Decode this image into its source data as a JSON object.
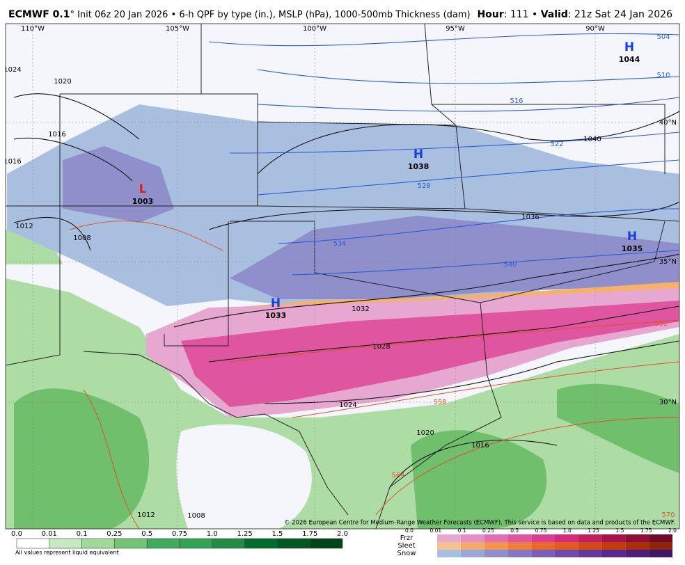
{
  "header": {
    "model": "ECMWF 0.1",
    "subtitle": "° Init 06z 20 Jan 2026 • 6-h QPF by type (in.), MSLP (hPa), 1000-500mb Thickness (dam)",
    "hour_label": "Hour",
    "hour_value": ": 111 • ",
    "valid_label": "Valid",
    "valid_value": ": 21z Sat 24 Jan 2026"
  },
  "map": {
    "longitudes": [
      "110°W",
      "105°W",
      "100°W",
      "95°W",
      "90°W"
    ],
    "latitudes": [
      "40°N",
      "35°N",
      "30°N"
    ],
    "pressure_centers": [
      {
        "letter": "H",
        "value": "1044"
      },
      {
        "letter": "H",
        "value": "1038"
      },
      {
        "letter": "H",
        "value": "1035"
      },
      {
        "letter": "H",
        "value": "1033"
      },
      {
        "letter": "L",
        "value": "1003"
      }
    ],
    "isobar_labels": [
      "1024",
      "1020",
      "1016",
      "1016",
      "1012",
      "1008",
      "1040",
      "1036",
      "1032",
      "1028",
      "1024",
      "1020",
      "1016",
      "1012",
      "1008"
    ],
    "thickness_labels": [
      "504",
      "510",
      "516",
      "522",
      "528",
      "534",
      "540",
      "552",
      "558",
      "564",
      "570"
    ],
    "copyright": "© 2026 European Centre for Medium-Range Weather Forecasts (ECMWF). This service is based on data and products of the ECMWF."
  },
  "legend": {
    "rain_ticks": [
      "0.0",
      "0.01",
      "0.1",
      "0.25",
      "0.5",
      "0.75",
      "1.0",
      "1.25",
      "1.5",
      "1.75",
      "2.0"
    ],
    "note": "All values represent liquid equivalent",
    "ptype_rows": [
      "Frzr",
      "Sleet",
      "Snow"
    ],
    "ptype_ticks": [
      "0.0",
      "0.01",
      "0.1",
      "0.25",
      "0.5",
      "0.75",
      "1.0",
      "1.25",
      "1.5",
      "1.75",
      "2.0"
    ]
  }
}
